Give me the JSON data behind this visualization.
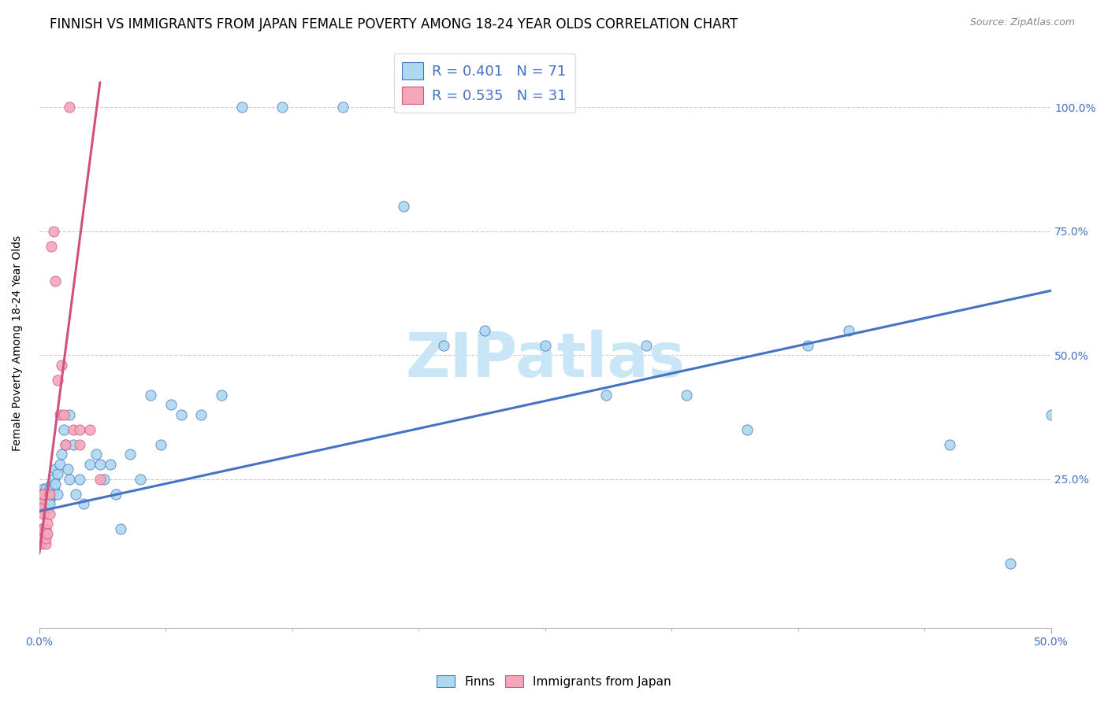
{
  "title": "FINNISH VS IMMIGRANTS FROM JAPAN FEMALE POVERTY AMONG 18-24 YEAR OLDS CORRELATION CHART",
  "source": "Source: ZipAtlas.com",
  "ylabel": "Female Poverty Among 18-24 Year Olds",
  "legend_blue_r": "R = 0.401",
  "legend_blue_n": "N = 71",
  "legend_pink_r": "R = 0.535",
  "legend_pink_n": "N = 31",
  "watermark": "ZIPatlas",
  "blue_scatter_x": [
    0.001,
    0.001,
    0.001,
    0.001,
    0.002,
    0.002,
    0.002,
    0.002,
    0.003,
    0.003,
    0.003,
    0.003,
    0.003,
    0.004,
    0.004,
    0.004,
    0.005,
    0.005,
    0.005,
    0.005,
    0.006,
    0.006,
    0.007,
    0.007,
    0.007,
    0.008,
    0.008,
    0.009,
    0.009,
    0.01,
    0.011,
    0.012,
    0.013,
    0.014,
    0.015,
    0.015,
    0.017,
    0.018,
    0.02,
    0.022,
    0.025,
    0.028,
    0.03,
    0.032,
    0.035,
    0.038,
    0.04,
    0.045,
    0.05,
    0.055,
    0.06,
    0.065,
    0.07,
    0.08,
    0.09,
    0.1,
    0.12,
    0.15,
    0.18,
    0.2,
    0.22,
    0.25,
    0.28,
    0.3,
    0.32,
    0.35,
    0.38,
    0.4,
    0.45,
    0.48,
    0.5
  ],
  "blue_scatter_y": [
    0.22,
    0.2,
    0.19,
    0.21,
    0.22,
    0.2,
    0.21,
    0.23,
    0.2,
    0.22,
    0.21,
    0.19,
    0.23,
    0.22,
    0.2,
    0.19,
    0.22,
    0.21,
    0.23,
    0.2,
    0.24,
    0.22,
    0.25,
    0.23,
    0.22,
    0.27,
    0.24,
    0.26,
    0.22,
    0.28,
    0.3,
    0.35,
    0.32,
    0.27,
    0.38,
    0.25,
    0.32,
    0.22,
    0.25,
    0.2,
    0.28,
    0.3,
    0.28,
    0.25,
    0.28,
    0.22,
    0.15,
    0.3,
    0.25,
    0.42,
    0.32,
    0.4,
    0.38,
    0.38,
    0.42,
    1.0,
    1.0,
    1.0,
    0.8,
    0.52,
    0.55,
    0.52,
    0.42,
    0.52,
    0.42,
    0.35,
    0.52,
    0.55,
    0.32,
    0.08,
    0.38
  ],
  "pink_scatter_x": [
    0.001,
    0.001,
    0.001,
    0.001,
    0.001,
    0.002,
    0.002,
    0.002,
    0.002,
    0.003,
    0.003,
    0.003,
    0.003,
    0.004,
    0.004,
    0.005,
    0.005,
    0.006,
    0.007,
    0.008,
    0.009,
    0.01,
    0.011,
    0.012,
    0.013,
    0.015,
    0.017,
    0.02,
    0.02,
    0.025,
    0.03
  ],
  "pink_scatter_y": [
    0.22,
    0.2,
    0.19,
    0.15,
    0.12,
    0.22,
    0.18,
    0.15,
    0.13,
    0.14,
    0.12,
    0.15,
    0.13,
    0.16,
    0.14,
    0.22,
    0.18,
    0.72,
    0.75,
    0.65,
    0.45,
    0.38,
    0.48,
    0.38,
    0.32,
    1.0,
    0.35,
    0.32,
    0.35,
    0.35,
    0.25
  ],
  "blue_line_x": [
    0.0,
    0.5
  ],
  "blue_line_y": [
    0.185,
    0.63
  ],
  "pink_line_x": [
    0.0,
    0.03
  ],
  "pink_line_y": [
    0.1,
    1.05
  ],
  "blue_color": "#ADD8F0",
  "pink_color": "#F4A7B9",
  "blue_line_color": "#4472C4",
  "pink_line_color": "#D05080",
  "grid_color": "#CCCCCC",
  "watermark_color": "#C8E6F5",
  "title_fontsize": 12,
  "axis_label_fontsize": 10,
  "legend_fontsize": 13,
  "xlim": [
    0.0,
    0.5
  ],
  "ylim": [
    -0.05,
    1.1
  ],
  "ytick_vals": [
    0.25,
    0.5,
    0.75,
    1.0
  ],
  "ytick_labels": [
    "25.0%",
    "50.0%",
    "75.0%",
    "100.0%"
  ]
}
